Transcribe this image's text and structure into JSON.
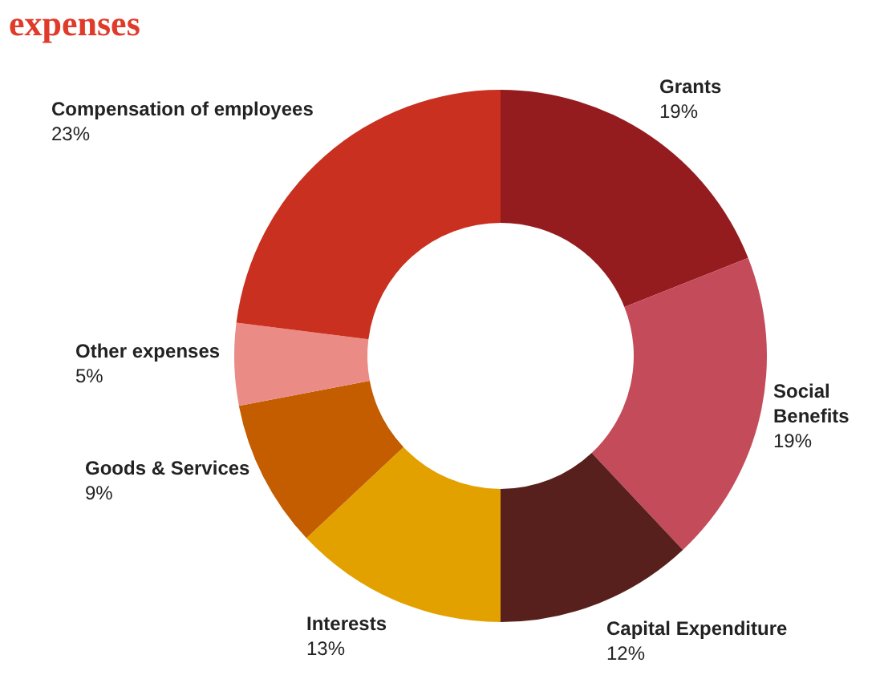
{
  "chart_data": {
    "type": "donut",
    "title": "expenses",
    "categories": [
      "Grants",
      "Social Benefits",
      "Capital Expenditure",
      "Interests",
      "Goods & Services",
      "Other expenses",
      "Compensation of employees"
    ],
    "values": [
      19,
      19,
      12,
      13,
      9,
      5,
      23
    ],
    "colors": [
      "#951c1e",
      "#c44b5a",
      "#58201c",
      "#e3a100",
      "#c45c00",
      "#ea8c85",
      "#c9301f"
    ],
    "value_labels": [
      "19%",
      "19%",
      "12%",
      "13%",
      "9%",
      "5%",
      "23%"
    ],
    "legend": false
  }
}
